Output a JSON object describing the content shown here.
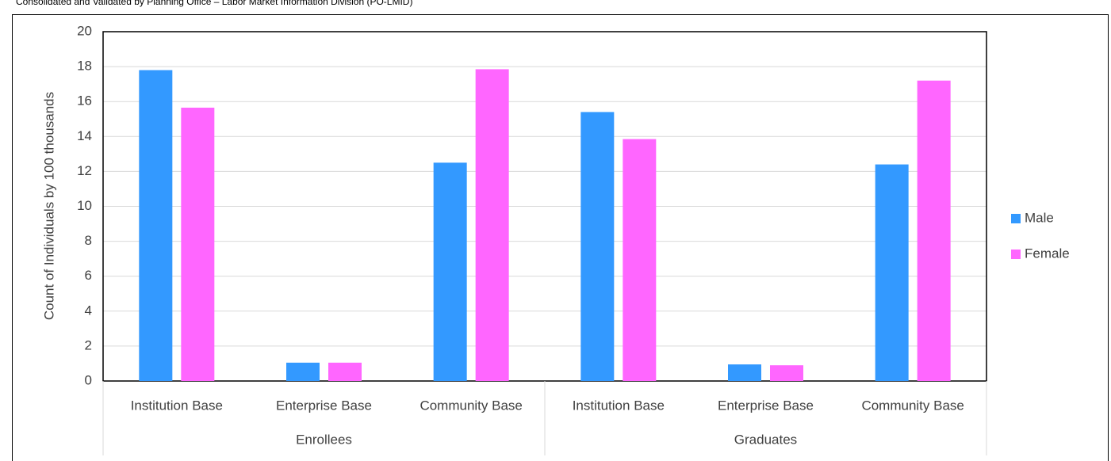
{
  "chart_data": {
    "type": "bar",
    "note": "Consolidated and Validated by Planning Office – Labor Market Information Division (PO-LMID)",
    "y_label": "Count of Individuals by 100 thousands",
    "groups": [
      {
        "name": "Enrollees",
        "categories": [
          "Institution Base",
          "Enterprise Base",
          "Community Base"
        ]
      },
      {
        "name": "Graduates",
        "categories": [
          "Institution Base",
          "Enterprise Base",
          "Community Base"
        ]
      }
    ],
    "series": [
      {
        "name": "Male",
        "color": "#3399ff",
        "values": [
          17.8,
          1.05,
          12.5,
          15.4,
          0.95,
          12.4
        ]
      },
      {
        "name": "Female",
        "color": "#ff66ff",
        "values": [
          15.65,
          1.05,
          17.85,
          13.85,
          0.9,
          17.2
        ]
      }
    ],
    "ylim": [
      0,
      20
    ],
    "yticks": [
      0,
      2,
      4,
      6,
      8,
      10,
      12,
      14,
      16,
      18,
      20
    ],
    "grid": true,
    "legend": "right"
  }
}
